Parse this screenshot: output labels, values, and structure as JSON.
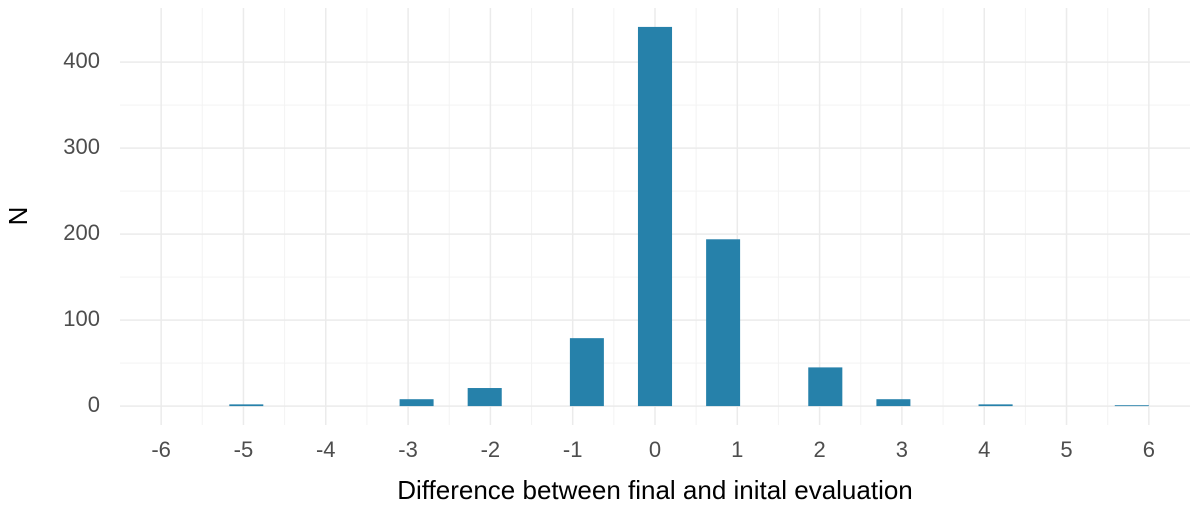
{
  "chart_data": {
    "type": "histogram",
    "x_label": "Difference between final and inital evaluation",
    "y_label": "N",
    "bins": [
      -6,
      -5.586,
      -5.172,
      -4.759,
      -4.345,
      -3.931,
      -3.517,
      -3.103,
      -2.69,
      -2.276,
      -1.862,
      -1.448,
      -1.034,
      -0.621,
      -0.207,
      0.207,
      0.621,
      1.034,
      1.448,
      1.862,
      2.276,
      2.69,
      3.103,
      3.517,
      3.931,
      4.345,
      4.759,
      5.172,
      5.586,
      6
    ],
    "values": [
      0,
      0,
      2,
      0,
      0,
      0,
      0,
      8,
      0,
      21,
      0,
      0,
      79,
      0,
      441,
      0,
      194,
      0,
      0,
      45,
      0,
      8,
      0,
      0,
      2,
      0,
      0,
      0,
      1
    ],
    "color": "#2681aa",
    "xlim": [
      -6.5,
      6.5
    ],
    "ylim": [
      -22,
      463
    ],
    "xticks": [
      -6,
      -5,
      -4,
      -3,
      -2,
      -1,
      0,
      1,
      2,
      3,
      4,
      5,
      6
    ],
    "yticks": [
      0,
      100,
      200,
      300,
      400
    ],
    "grid": true
  }
}
